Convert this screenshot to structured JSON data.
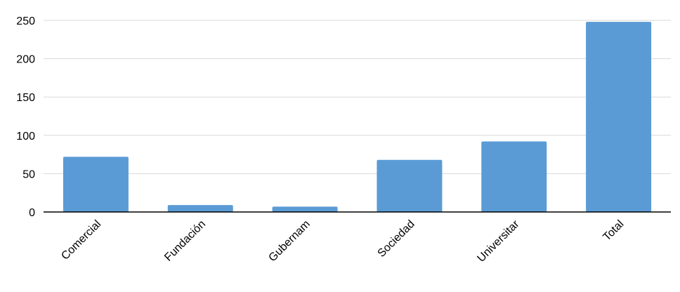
{
  "chart_data": {
    "type": "bar",
    "title": "",
    "xlabel": "",
    "ylabel": "",
    "categories": [
      "Comercial",
      "Fundación",
      "Gubernam",
      "Sociedad",
      "Universitar",
      "Total"
    ],
    "values": [
      72,
      9,
      7,
      68,
      92,
      248
    ],
    "ylim": [
      0,
      250
    ],
    "yticks": [
      0,
      50,
      100,
      150,
      200,
      250
    ],
    "grid": true,
    "legend": "none",
    "colors": {
      "bar": "#5b9bd5",
      "grid": "#d9d9d9",
      "axis": "#000000",
      "text": "#000000"
    }
  }
}
